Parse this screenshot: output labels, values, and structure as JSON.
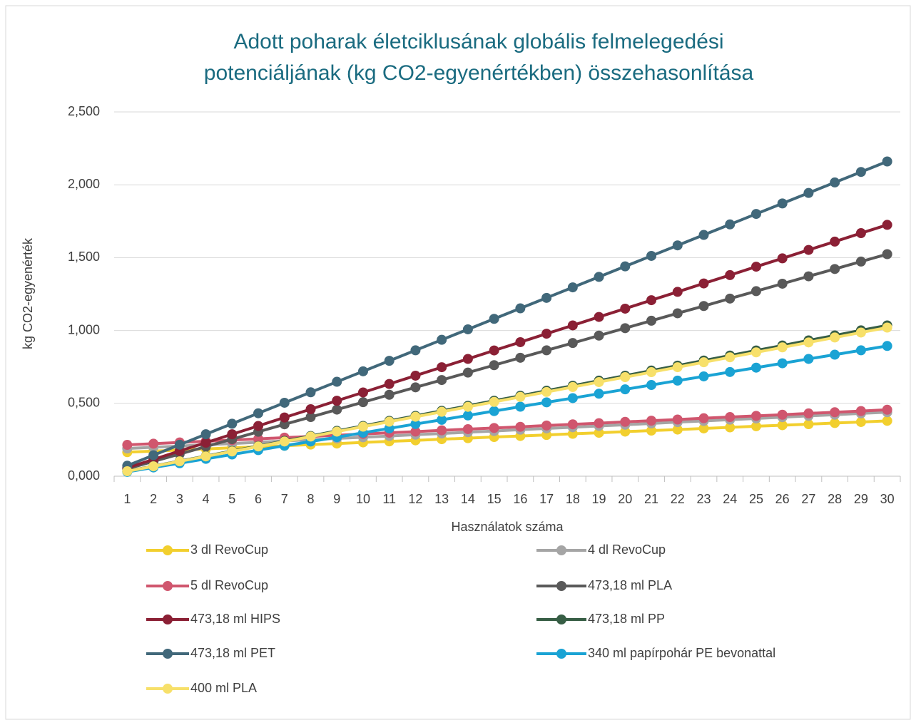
{
  "chart_data": {
    "type": "line",
    "title": [
      "Adott poharak életciklusának globális felmelegedési",
      "potenciáljának (kg CO2-egyenértékben) összehasonlítása"
    ],
    "y_label": "kg CO2-egyenérték",
    "x_label": "Használatok száma",
    "categories": [
      1,
      2,
      3,
      4,
      5,
      6,
      7,
      8,
      9,
      10,
      11,
      12,
      13,
      14,
      15,
      16,
      17,
      18,
      19,
      20,
      21,
      22,
      23,
      24,
      25,
      26,
      27,
      28,
      29,
      30
    ],
    "ylim": [
      0,
      2.5
    ],
    "yticks": [
      {
        "value": 0,
        "label": "0,000"
      },
      {
        "value": 0.5,
        "label": "0,500"
      },
      {
        "value": 1,
        "label": "1,000"
      },
      {
        "value": 1.5,
        "label": "1,500"
      },
      {
        "value": 2,
        "label": "2,000"
      },
      {
        "value": 2.5,
        "label": "2,500"
      }
    ],
    "grid": true,
    "legend": "bottom",
    "series": [
      {
        "name": "3 dl RevoCup",
        "color": "#f2cf2e",
        "values": [
          0.165,
          0.172,
          0.18,
          0.187,
          0.195,
          0.202,
          0.209,
          0.217,
          0.224,
          0.232,
          0.239,
          0.246,
          0.254,
          0.261,
          0.269,
          0.276,
          0.283,
          0.291,
          0.298,
          0.306,
          0.313,
          0.32,
          0.328,
          0.335,
          0.343,
          0.35,
          0.357,
          0.365,
          0.372,
          0.38
        ]
      },
      {
        "name": "4 dl RevoCup",
        "color": "#a5a5a5",
        "values": [
          0.19,
          0.199,
          0.207,
          0.216,
          0.224,
          0.233,
          0.242,
          0.25,
          0.259,
          0.267,
          0.276,
          0.285,
          0.293,
          0.302,
          0.31,
          0.319,
          0.328,
          0.336,
          0.345,
          0.353,
          0.362,
          0.371,
          0.379,
          0.388,
          0.396,
          0.405,
          0.414,
          0.422,
          0.431,
          0.439
        ]
      },
      {
        "name": "5 dl RevoCup",
        "color": "#d0566e",
        "values": [
          0.215,
          0.223,
          0.232,
          0.24,
          0.248,
          0.256,
          0.265,
          0.273,
          0.281,
          0.29,
          0.298,
          0.306,
          0.315,
          0.323,
          0.331,
          0.339,
          0.348,
          0.356,
          0.364,
          0.373,
          0.381,
          0.389,
          0.398,
          0.406,
          0.414,
          0.422,
          0.431,
          0.439,
          0.447,
          0.456
        ]
      },
      {
        "name": "473,18 ml PLA",
        "color": "#595959",
        "values": [
          0.051,
          0.102,
          0.152,
          0.203,
          0.254,
          0.305,
          0.356,
          0.406,
          0.457,
          0.508,
          0.559,
          0.61,
          0.66,
          0.711,
          0.762,
          0.813,
          0.864,
          0.914,
          0.965,
          1.016,
          1.067,
          1.118,
          1.168,
          1.219,
          1.27,
          1.321,
          1.372,
          1.422,
          1.473,
          1.524
        ]
      },
      {
        "name": "473,18 ml HIPS",
        "color": "#8b2035",
        "values": [
          0.058,
          0.115,
          0.173,
          0.23,
          0.288,
          0.345,
          0.403,
          0.46,
          0.518,
          0.575,
          0.633,
          0.69,
          0.748,
          0.805,
          0.863,
          0.92,
          0.978,
          1.035,
          1.093,
          1.15,
          1.208,
          1.265,
          1.323,
          1.38,
          1.438,
          1.495,
          1.553,
          1.61,
          1.668,
          1.725
        ]
      },
      {
        "name": "473,18 ml PP",
        "color": "#375e45",
        "values": [
          0.035,
          0.069,
          0.104,
          0.138,
          0.173,
          0.207,
          0.242,
          0.276,
          0.311,
          0.345,
          0.38,
          0.414,
          0.449,
          0.483,
          0.518,
          0.552,
          0.587,
          0.621,
          0.656,
          0.69,
          0.725,
          0.759,
          0.794,
          0.828,
          0.863,
          0.897,
          0.932,
          0.966,
          1.001,
          1.035
        ]
      },
      {
        "name": "473,18 ml PET",
        "color": "#41687a",
        "values": [
          0.072,
          0.144,
          0.216,
          0.288,
          0.36,
          0.432,
          0.504,
          0.576,
          0.648,
          0.72,
          0.792,
          0.864,
          0.936,
          1.008,
          1.08,
          1.152,
          1.224,
          1.296,
          1.368,
          1.44,
          1.512,
          1.584,
          1.656,
          1.728,
          1.8,
          1.872,
          1.944,
          2.016,
          2.088,
          2.16
        ]
      },
      {
        "name": "340 ml papírpohár PE bevonattal",
        "color": "#1aa3d4",
        "values": [
          0.03,
          0.06,
          0.089,
          0.119,
          0.149,
          0.179,
          0.209,
          0.238,
          0.268,
          0.298,
          0.328,
          0.358,
          0.387,
          0.417,
          0.447,
          0.477,
          0.507,
          0.536,
          0.566,
          0.596,
          0.626,
          0.656,
          0.685,
          0.715,
          0.745,
          0.775,
          0.805,
          0.834,
          0.864,
          0.894
        ]
      },
      {
        "name": "400 ml PLA",
        "color": "#f7e06a",
        "values": [
          0.034,
          0.068,
          0.102,
          0.136,
          0.17,
          0.204,
          0.238,
          0.272,
          0.306,
          0.34,
          0.374,
          0.408,
          0.442,
          0.476,
          0.51,
          0.544,
          0.578,
          0.612,
          0.646,
          0.68,
          0.714,
          0.748,
          0.782,
          0.816,
          0.85,
          0.884,
          0.918,
          0.952,
          0.986,
          1.02
        ]
      }
    ]
  }
}
